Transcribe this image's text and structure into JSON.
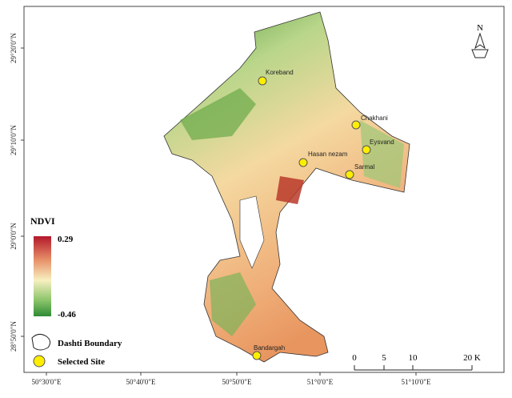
{
  "map": {
    "latitude_labels": [
      "29°20'0\"N",
      "29°10'0\"N",
      "29°0'0\"N",
      "28°50'0\"N"
    ],
    "longitude_labels": [
      "50°30'0\"E",
      "50°40'0\"E",
      "50°50'0\"E",
      "51°0'0\"E",
      "51°10'0\"E"
    ],
    "sites": [
      "Koreband",
      "Chakhani",
      "Eysvand",
      "Hasan nezam",
      "Sarmal",
      "Bandargah"
    ],
    "north_arrow": "N"
  },
  "legend": {
    "title": "NDVI",
    "max": 0.29,
    "min": -0.46,
    "boundary": "Dashti Boundary",
    "site": "Selected Site"
  },
  "scale_bar": {
    "labels": [
      "0",
      "5",
      "10",
      "20 K"
    ]
  }
}
